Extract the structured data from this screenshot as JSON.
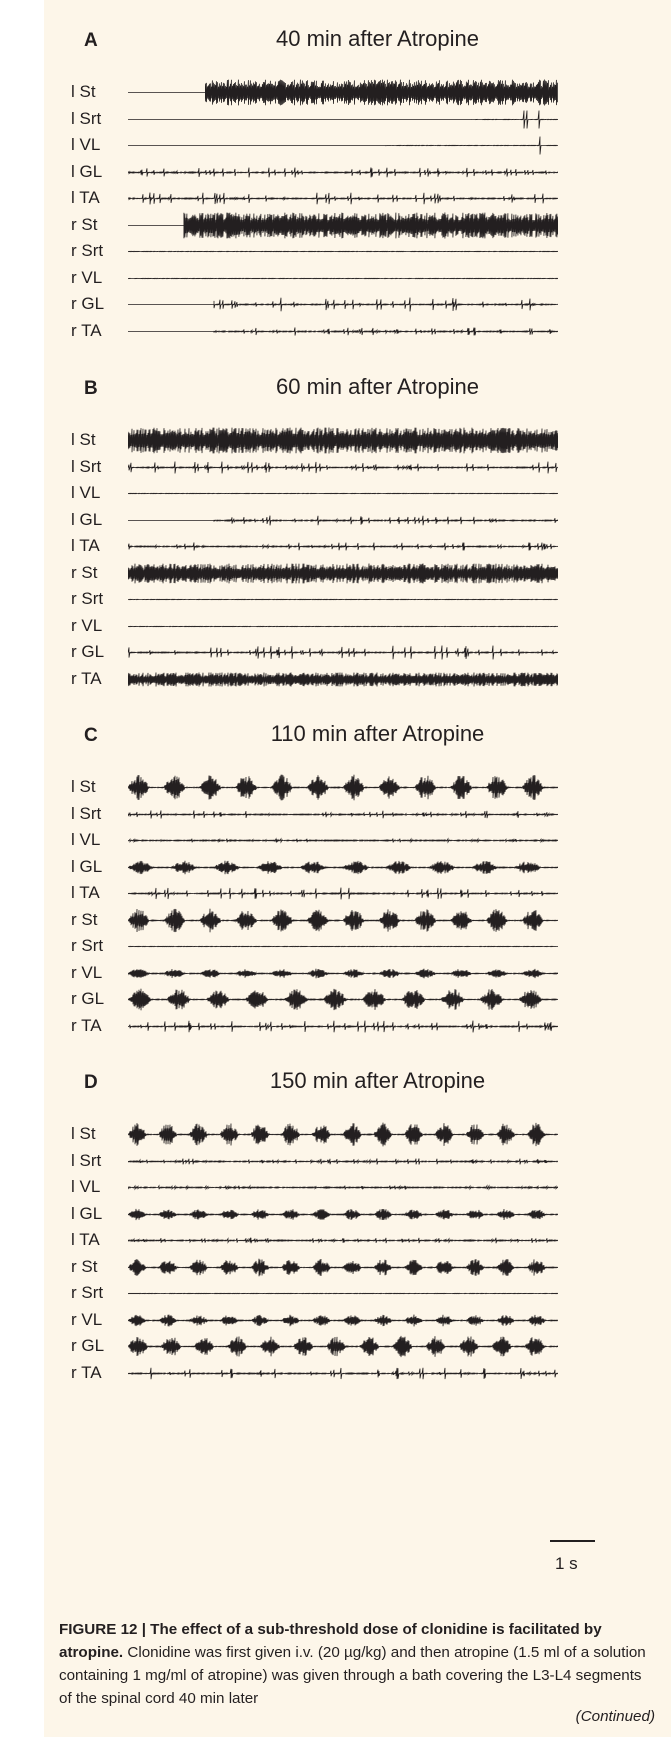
{
  "panels": [
    {
      "letter": "A",
      "title": "40 min after Atropine",
      "traces": [
        {
          "label": "l St",
          "pattern": "dense",
          "start": 0.18,
          "end": 1.0,
          "amp": 13
        },
        {
          "label": "l Srt",
          "pattern": "spikes",
          "start": 0.8,
          "end": 1.0,
          "amp": 9
        },
        {
          "label": "l VL",
          "pattern": "spikes",
          "start": 0.6,
          "end": 1.0,
          "amp": 9
        },
        {
          "label": "l GL",
          "pattern": "sparse",
          "start": 0.0,
          "end": 1.0,
          "amp": 5
        },
        {
          "label": "l TA",
          "pattern": "sparse",
          "start": 0.0,
          "end": 1.0,
          "amp": 6
        },
        {
          "label": "r St",
          "pattern": "dense",
          "start": 0.13,
          "end": 1.0,
          "amp": 13
        },
        {
          "label": "r Srt",
          "pattern": "flat",
          "start": 0.0,
          "end": 1.0,
          "amp": 1
        },
        {
          "label": "r VL",
          "pattern": "flat",
          "start": 0.0,
          "end": 1.0,
          "amp": 1
        },
        {
          "label": "r GL",
          "pattern": "sparse",
          "start": 0.2,
          "end": 1.0,
          "amp": 7
        },
        {
          "label": "r TA",
          "pattern": "sparse",
          "start": 0.2,
          "end": 1.0,
          "amp": 4
        }
      ]
    },
    {
      "letter": "B",
      "title": "60 min after Atropine",
      "traces": [
        {
          "label": "l St",
          "pattern": "dense",
          "start": 0.0,
          "end": 1.0,
          "amp": 13
        },
        {
          "label": "l Srt",
          "pattern": "sparse",
          "start": 0.0,
          "end": 1.0,
          "amp": 6
        },
        {
          "label": "l VL",
          "pattern": "flat",
          "start": 0.0,
          "end": 1.0,
          "amp": 1
        },
        {
          "label": "l GL",
          "pattern": "sparse",
          "start": 0.2,
          "end": 1.0,
          "amp": 5
        },
        {
          "label": "l TA",
          "pattern": "sparse",
          "start": 0.0,
          "end": 1.0,
          "amp": 4
        },
        {
          "label": "r St",
          "pattern": "dense",
          "start": 0.0,
          "end": 1.0,
          "amp": 10
        },
        {
          "label": "r Srt",
          "pattern": "flat",
          "start": 0.0,
          "end": 1.0,
          "amp": 1
        },
        {
          "label": "r VL",
          "pattern": "flat",
          "start": 0.0,
          "end": 1.0,
          "amp": 1
        },
        {
          "label": "r GL",
          "pattern": "sparse",
          "start": 0.0,
          "end": 1.0,
          "amp": 7
        },
        {
          "label": "r TA",
          "pattern": "dense",
          "start": 0.0,
          "end": 1.0,
          "amp": 7
        }
      ]
    },
    {
      "letter": "C",
      "title": "110 min after Atropine",
      "traces": [
        {
          "label": "l St",
          "pattern": "bursts",
          "start": 0.0,
          "end": 1.0,
          "amp": 13,
          "bursts": 12
        },
        {
          "label": "l Srt",
          "pattern": "sparse",
          "start": 0.0,
          "end": 1.0,
          "amp": 4
        },
        {
          "label": "l VL",
          "pattern": "sparse",
          "start": 0.0,
          "end": 1.0,
          "amp": 2
        },
        {
          "label": "l GL",
          "pattern": "bursts",
          "start": 0.0,
          "end": 1.0,
          "amp": 7,
          "bursts": 10
        },
        {
          "label": "l TA",
          "pattern": "sparse",
          "start": 0.0,
          "end": 1.0,
          "amp": 6
        },
        {
          "label": "r St",
          "pattern": "bursts",
          "start": 0.0,
          "end": 1.0,
          "amp": 12,
          "bursts": 12
        },
        {
          "label": "r Srt",
          "pattern": "flat",
          "start": 0.0,
          "end": 1.0,
          "amp": 1
        },
        {
          "label": "r VL",
          "pattern": "bursts",
          "start": 0.0,
          "end": 1.0,
          "amp": 5,
          "bursts": 12
        },
        {
          "label": "r GL",
          "pattern": "bursts",
          "start": 0.0,
          "end": 1.0,
          "amp": 11,
          "bursts": 11
        },
        {
          "label": "r TA",
          "pattern": "sparse",
          "start": 0.0,
          "end": 1.0,
          "amp": 6
        }
      ]
    },
    {
      "letter": "D",
      "title": "150 min after Atropine",
      "traces": [
        {
          "label": "l St",
          "pattern": "bursts",
          "start": 0.0,
          "end": 1.0,
          "amp": 12,
          "bursts": 14
        },
        {
          "label": "l Srt",
          "pattern": "sparse",
          "start": 0.0,
          "end": 1.0,
          "amp": 3
        },
        {
          "label": "l VL",
          "pattern": "sparse",
          "start": 0.0,
          "end": 1.0,
          "amp": 2
        },
        {
          "label": "l GL",
          "pattern": "bursts",
          "start": 0.0,
          "end": 1.0,
          "amp": 6,
          "bursts": 14
        },
        {
          "label": "l TA",
          "pattern": "sparse",
          "start": 0.0,
          "end": 1.0,
          "amp": 3
        },
        {
          "label": "r St",
          "pattern": "bursts",
          "start": 0.0,
          "end": 1.0,
          "amp": 9,
          "bursts": 14
        },
        {
          "label": "r Srt",
          "pattern": "flat",
          "start": 0.0,
          "end": 1.0,
          "amp": 1
        },
        {
          "label": "r VL",
          "pattern": "bursts",
          "start": 0.0,
          "end": 1.0,
          "amp": 6,
          "bursts": 14
        },
        {
          "label": "r GL",
          "pattern": "bursts",
          "start": 0.0,
          "end": 1.0,
          "amp": 11,
          "bursts": 13
        },
        {
          "label": "r TA",
          "pattern": "sparse",
          "start": 0.0,
          "end": 1.0,
          "amp": 6
        }
      ]
    }
  ],
  "scale_bar_label": "1 s",
  "caption": {
    "figure_label": "FIGURE 12 | The effect of a sub-threshold dose of clonidine is facilitated by atropine.",
    "body": " Clonidine was first given i.v. (20 µg/kg) and then atropine (1.5 ml of a solution containing 1 mg/ml of atropine) was given through a bath covering the L3-L4 segments of the spinal cord 40 min later",
    "continued": "(Continued)"
  },
  "colors": {
    "background": "#fdf6e9",
    "trace": "#231f20"
  }
}
